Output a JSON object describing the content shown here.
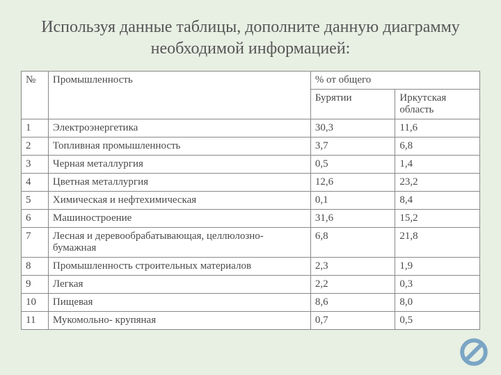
{
  "title": "Используя данные таблицы, дополните данную диаграмму необходимой информацией:",
  "table": {
    "headers": {
      "num": "№",
      "industry": "Промышленность",
      "percent": "% от общего",
      "region1": "Бурятии",
      "region2": "Иркутская область"
    },
    "rows": [
      {
        "n": "1",
        "industry": "Электроэнергетика",
        "v1": "30,3",
        "v2": "11,6"
      },
      {
        "n": "2",
        "industry": "Топливная промышленность",
        "v1": "3,7",
        "v2": "6,8"
      },
      {
        "n": "3",
        "industry": "Черная металлургия",
        "v1": "0,5",
        "v2": "1,4"
      },
      {
        "n": "4",
        "industry": "Цветная металлургия",
        "v1": "12,6",
        "v2": "23,2"
      },
      {
        "n": "5",
        "industry": "Химическая и нефтехимическая",
        "v1": "0,1",
        "v2": "8,4"
      },
      {
        "n": "6",
        "industry": "Машиностроение",
        "v1": "31,6",
        "v2": "15,2"
      },
      {
        "n": "7",
        "industry": "Лесная и деревообрабатывающая, целлюлозно-бумажная",
        "v1": "6,8",
        "v2": "21,8"
      },
      {
        "n": "8",
        "industry": "Промышленность строительных материалов",
        "v1": "2,3",
        "v2": "1,9"
      },
      {
        "n": "9",
        "industry": "Легкая",
        "v1": "2,2",
        "v2": "0,3"
      },
      {
        "n": "10",
        "industry": "Пищевая",
        "v1": "8,6",
        "v2": "8,0"
      },
      {
        "n": "11",
        "industry": "Мукомольно- крупяная",
        "v1": "0,7",
        "v2": "0,5"
      }
    ]
  },
  "styling": {
    "background_color": "#e8efe3",
    "table_bg": "#ffffff",
    "border_color": "#888888",
    "title_color": "#565656",
    "cell_text_color": "#4a4a4a",
    "title_fontsize": 24,
    "cell_fontsize": 15,
    "no_sign_color": "#7aa5c4",
    "col_widths": {
      "num": 32,
      "industry": 310,
      "val": 100
    }
  }
}
